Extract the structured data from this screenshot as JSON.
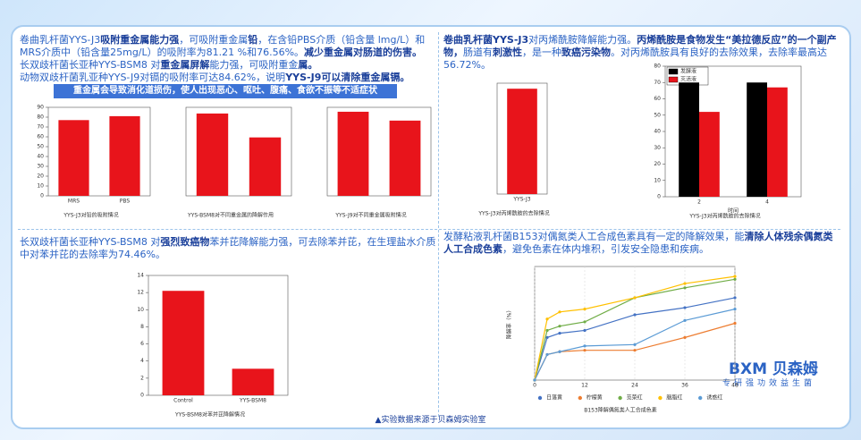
{
  "panels": [
    {
      "paragraphs": [
        [
          {
            "text": "卷曲乳杆菌YYS-J3",
            "bold": false
          },
          {
            "text": "吸附重金属能力强",
            "bold": true
          },
          {
            "text": "，可吸附重金属",
            "bold": false
          },
          {
            "text": "铅",
            "bold": true
          },
          {
            "text": "，在含铅PBS介质（铅含量 lmg/L）和MRS介质中（铅含量25mg/L）的吸附率为81.21 %和76.56%。",
            "bold": false
          },
          {
            "text": "减少重金属对肠道的伤害。",
            "bold": true
          }
        ],
        [
          {
            "text": "长双歧杆菌长亚种YYS-BSM8 对",
            "bold": false
          },
          {
            "text": "重金属屏解",
            "bold": true
          },
          {
            "text": "能力强，可吸附重金",
            "bold": false
          },
          {
            "text": "属。",
            "bold": true
          }
        ],
        [
          {
            "text": "动物双歧杆菌乳亚种YYS-J9对镉的吸附率可达84.62%，说明",
            "bold": false
          },
          {
            "text": "YYS-J9可以清除重金属镉。",
            "bold": true
          }
        ]
      ],
      "banner": "重金属会导致消化道损伤，使人出现恶心、呕吐、腹痛、食欲不振等不适症状"
    },
    {
      "paragraphs": [
        [
          {
            "text": "卷曲乳杆菌YYS-J3",
            "bold": true
          },
          {
            "text": "对丙烯酰胺降解能力强。",
            "bold": false
          },
          {
            "text": "丙烯酰胺是食物发生“美拉德反应”的一个副产物，",
            "bold": true
          },
          {
            "text": "肠道有",
            "bold": false
          },
          {
            "text": "刺激性",
            "bold": true
          },
          {
            "text": "，是一种",
            "bold": false
          },
          {
            "text": "致癌污染物",
            "bold": true
          },
          {
            "text": "。对丙烯酰胺具有良好的去除效果，去除率最高达56.72%。",
            "bold": false
          }
        ]
      ]
    },
    {
      "paragraphs": [
        [
          {
            "text": "长双歧杆菌长亚种YYS-BSM8 对",
            "bold": false
          },
          {
            "text": "强烈致癌物",
            "bold": true
          },
          {
            "text": "苯并芘降解能力强，可去除苯并芘，在生理盐水介质中对苯并芘的去除率为74.46%。",
            "bold": false
          }
        ]
      ]
    },
    {
      "paragraphs": [
        [
          {
            "text": "发酵粘液乳杆菌B153对偶氮类人工合成色素具有一定的降解效果，能",
            "bold": false
          },
          {
            "text": "清除人体残余偶氮类人工合成色素",
            "bold": true
          },
          {
            "text": "，避免色素在体内堆积，引发安全隐患和疾病。",
            "bold": false
          }
        ]
      ]
    }
  ],
  "chart_data": [
    {
      "type": "bar",
      "caption": "YYS-J3对铅的吸附情况",
      "categories": [
        "MRS",
        "PBS"
      ],
      "values": [
        77,
        81
      ],
      "color": "#e8141b",
      "ylim": [
        0,
        90
      ],
      "yticks": [
        0,
        10,
        20,
        30,
        40,
        50,
        60,
        70,
        80,
        90
      ]
    },
    {
      "type": "bar",
      "caption": "YYS-BSM8对不同重金属的降解作用",
      "categories": [
        null,
        null
      ],
      "values": [
        93,
        66
      ],
      "color": "#e8141b",
      "ylim": [
        0,
        100
      ]
    },
    {
      "type": "bar",
      "caption": "YYS-J9对不同重金属吸附情况",
      "categories": [
        null,
        null
      ],
      "values": [
        95,
        85
      ],
      "color": "#e8141b",
      "ylim": [
        0,
        100
      ]
    },
    {
      "type": "bar",
      "caption": "YYS-J3对丙烯酰胺的去除情况",
      "categories": [
        "YYS-J3"
      ],
      "values": [
        57
      ],
      "color": "#e8141b",
      "ylim": [
        0,
        60
      ]
    },
    {
      "type": "bar",
      "caption": "YYS-J3对丙烯酰胺的去除情况",
      "x_label": "时间",
      "categories": [
        "2",
        "4"
      ],
      "series": [
        {
          "name": "发酵液",
          "color": "#000000",
          "values": [
            70,
            70
          ]
        },
        {
          "name": "灭活液",
          "color": "#e8141b",
          "values": [
            52,
            67
          ]
        }
      ],
      "ylim": [
        0,
        80
      ],
      "yticks": [
        0,
        10,
        20,
        30,
        40,
        50,
        60,
        70,
        80
      ],
      "legend": "upper left"
    },
    {
      "type": "bar",
      "caption": "YYS-BSM8对苯并芘降解情况",
      "categories": [
        "Control",
        "YYS-BSM8"
      ],
      "values": [
        12.2,
        3.1
      ],
      "color": "#e8141b",
      "ylim": [
        0,
        14
      ],
      "yticks": [
        0,
        2,
        4,
        6,
        8,
        10,
        12,
        14
      ]
    },
    {
      "type": "line",
      "caption": "B153降解偶氮类人工合成色素",
      "y_label": "降解率（%）",
      "x": [
        0,
        3,
        6,
        12,
        24,
        36,
        48
      ],
      "xlim": [
        0,
        48
      ],
      "xticks": [
        0,
        12,
        24,
        36,
        48
      ],
      "ylim": [
        0,
        80
      ],
      "grid": true,
      "legend": "lower center",
      "series": [
        {
          "name": "日落黄",
          "color": "#4472c4",
          "values": [
            0,
            30,
            33,
            35,
            46,
            51,
            58
          ]
        },
        {
          "name": "柠檬黄",
          "color": "#ed7d31",
          "values": [
            0,
            18,
            20,
            21,
            21,
            30,
            40
          ]
        },
        {
          "name": "苋菜红",
          "color": "#70ad47",
          "values": [
            0,
            35,
            38,
            41,
            58,
            65,
            71
          ]
        },
        {
          "name": "胭脂红",
          "color": "#ffc000",
          "values": [
            0,
            43,
            48,
            50,
            58,
            68,
            73
          ]
        },
        {
          "name": "诱惑红",
          "color": "#5b9bd5",
          "values": [
            0,
            18,
            20,
            24,
            25,
            42,
            50
          ]
        }
      ]
    }
  ],
  "logo": {
    "name": "BXM 贝森姆",
    "slogan": "专研强功效益生菌"
  },
  "footer": "▲实验数据来源于贝森姆实验室"
}
